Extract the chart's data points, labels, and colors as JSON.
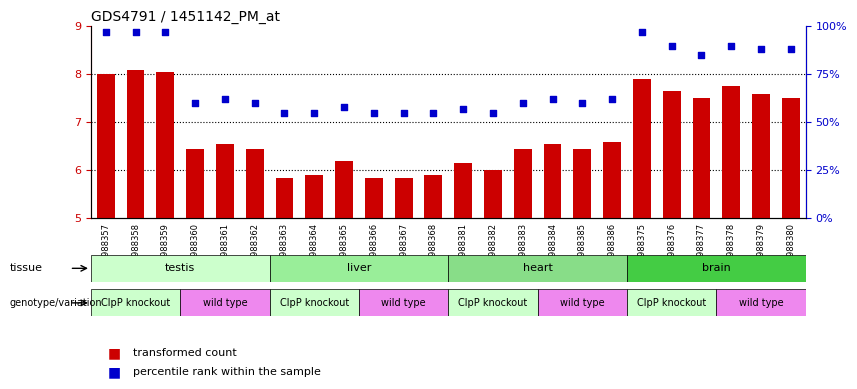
{
  "title": "GDS4791 / 1451142_PM_at",
  "samples": [
    "GSM988357",
    "GSM988358",
    "GSM988359",
    "GSM988360",
    "GSM988361",
    "GSM988362",
    "GSM988363",
    "GSM988364",
    "GSM988365",
    "GSM988366",
    "GSM988367",
    "GSM988368",
    "GSM988381",
    "GSM988382",
    "GSM988383",
    "GSM988384",
    "GSM988385",
    "GSM988386",
    "GSM988375",
    "GSM988376",
    "GSM988377",
    "GSM988378",
    "GSM988379",
    "GSM988380"
  ],
  "bar_values": [
    8.0,
    8.1,
    8.05,
    6.45,
    6.55,
    6.45,
    5.85,
    5.9,
    6.2,
    5.85,
    5.85,
    5.9,
    6.15,
    6.0,
    6.45,
    6.55,
    6.45,
    6.6,
    7.9,
    7.65,
    7.5,
    7.75,
    7.6,
    7.5
  ],
  "percentile_values": [
    97,
    97,
    97,
    60,
    62,
    60,
    55,
    55,
    58,
    55,
    55,
    55,
    57,
    55,
    60,
    62,
    60,
    62,
    97,
    90,
    85,
    90,
    88,
    88
  ],
  "bar_color": "#cc0000",
  "dot_color": "#0000cc",
  "ylim_left": [
    5,
    9
  ],
  "ylim_right": [
    0,
    100
  ],
  "yticks_left": [
    5,
    6,
    7,
    8,
    9
  ],
  "yticks_right": [
    0,
    25,
    50,
    75,
    100
  ],
  "dotted_lines": [
    6,
    7,
    8
  ],
  "tissues": [
    {
      "label": "testis",
      "start": 0,
      "end": 6,
      "color": "#ccffcc"
    },
    {
      "label": "liver",
      "start": 6,
      "end": 12,
      "color": "#99ee99"
    },
    {
      "label": "heart",
      "start": 12,
      "end": 18,
      "color": "#88dd88"
    },
    {
      "label": "brain",
      "start": 18,
      "end": 24,
      "color": "#44cc44"
    }
  ],
  "genotypes": [
    {
      "label": "ClpP knockout",
      "start": 0,
      "end": 3,
      "color": "#ccffcc"
    },
    {
      "label": "wild type",
      "start": 3,
      "end": 6,
      "color": "#ee88ee"
    },
    {
      "label": "ClpP knockout",
      "start": 6,
      "end": 9,
      "color": "#ccffcc"
    },
    {
      "label": "wild type",
      "start": 9,
      "end": 12,
      "color": "#ee88ee"
    },
    {
      "label": "ClpP knockout",
      "start": 12,
      "end": 15,
      "color": "#ccffcc"
    },
    {
      "label": "wild type",
      "start": 15,
      "end": 18,
      "color": "#ee88ee"
    },
    {
      "label": "ClpP knockout",
      "start": 18,
      "end": 21,
      "color": "#ccffcc"
    },
    {
      "label": "wild type",
      "start": 21,
      "end": 24,
      "color": "#ee88ee"
    }
  ],
  "tissue_row_label": "tissue",
  "genotype_row_label": "genotype/variation",
  "legend_bar": "transformed count",
  "legend_dot": "percentile rank within the sample",
  "background_color": "#ffffff",
  "right_axis_color": "#0000cc",
  "left_axis_color": "#cc0000"
}
